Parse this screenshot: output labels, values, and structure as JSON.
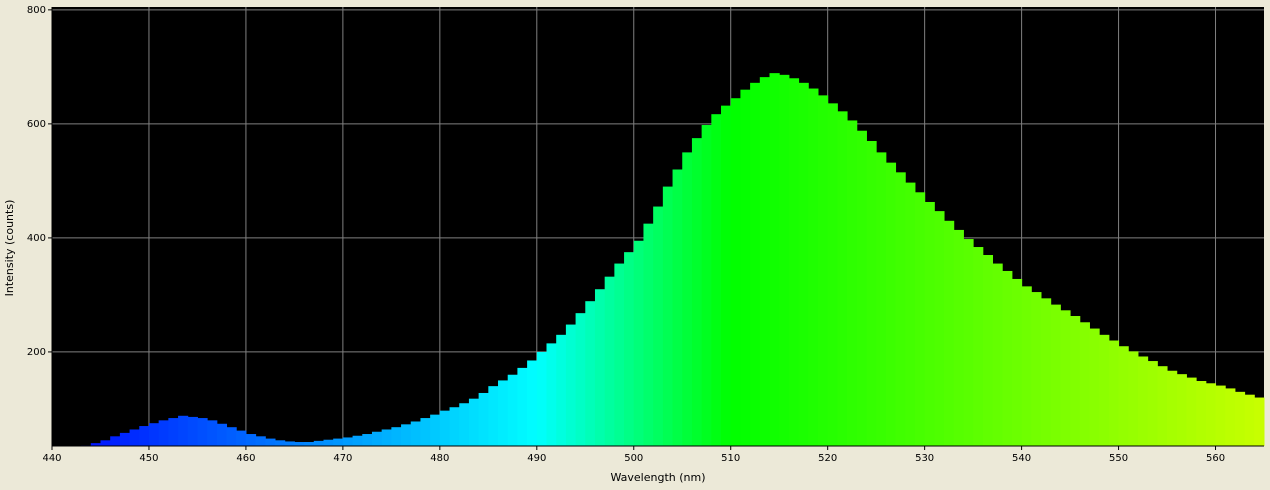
{
  "chart_data": {
    "type": "bar",
    "x_label": "Wavelength (nm)",
    "y_label": "Intensity (counts)",
    "x": [
      443,
      444,
      445,
      446,
      447,
      448,
      449,
      450,
      451,
      452,
      453,
      454,
      455,
      456,
      457,
      458,
      459,
      460,
      461,
      462,
      463,
      464,
      465,
      466,
      467,
      468,
      469,
      470,
      471,
      472,
      473,
      474,
      475,
      476,
      477,
      478,
      479,
      480,
      481,
      482,
      483,
      484,
      485,
      486,
      487,
      488,
      489,
      490,
      491,
      492,
      493,
      494,
      495,
      496,
      497,
      498,
      499,
      500,
      501,
      502,
      503,
      504,
      505,
      506,
      507,
      508,
      509,
      510,
      511,
      512,
      513,
      514,
      515,
      516,
      517,
      518,
      519,
      520,
      521,
      522,
      523,
      524,
      525,
      526,
      527,
      528,
      529,
      530,
      531,
      532,
      533,
      534,
      535,
      536,
      537,
      538,
      539,
      540,
      541,
      542,
      543,
      544,
      545,
      546,
      547,
      548,
      549,
      550,
      551,
      552,
      553,
      554,
      555,
      556,
      557,
      558,
      559,
      560,
      561,
      562,
      563,
      564
    ],
    "values": [
      36,
      40,
      45,
      52,
      58,
      64,
      70,
      75,
      80,
      84,
      88,
      86,
      84,
      80,
      74,
      68,
      62,
      56,
      52,
      48,
      45,
      43,
      42,
      42,
      44,
      46,
      48,
      50,
      53,
      56,
      60,
      64,
      68,
      73,
      78,
      84,
      90,
      97,
      103,
      110,
      118,
      128,
      140,
      150,
      160,
      172,
      185,
      200,
      215,
      230,
      248,
      268,
      289,
      310,
      332,
      355,
      375,
      395,
      425,
      455,
      490,
      520,
      550,
      575,
      598,
      617,
      632,
      645,
      660,
      672,
      682,
      689,
      686,
      680,
      672,
      662,
      650,
      636,
      622,
      606,
      588,
      570,
      550,
      532,
      515,
      497,
      480,
      463,
      447,
      430,
      414,
      398,
      384,
      370,
      355,
      342,
      328,
      315,
      305,
      294,
      283,
      273,
      263,
      252,
      241,
      230,
      220,
      210,
      201,
      192,
      184,
      175,
      167,
      161,
      155,
      149,
      145,
      141,
      136,
      130,
      125,
      120
    ],
    "xlim": [
      440,
      565
    ],
    "ylim": [
      35,
      805
    ],
    "xticks": [
      440,
      450,
      460,
      470,
      480,
      490,
      500,
      510,
      520,
      530,
      540,
      550,
      560
    ],
    "yticks": [
      200,
      400,
      600,
      800
    ],
    "grid": true,
    "plot_background": "#000000"
  }
}
